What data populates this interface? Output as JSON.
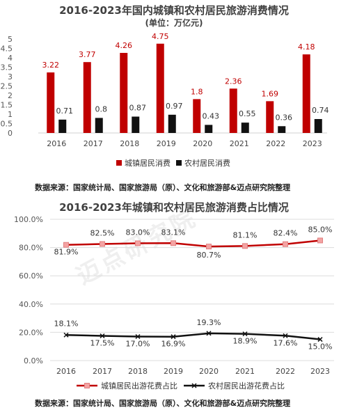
{
  "chart1": {
    "title": "2016-2023年国内城镇和农村居民旅游消费情况",
    "unit": "(单位：万亿元)",
    "source": "数据来源：国家统计局、国家旅游局（原）、文化和旅游部&迈点研究院整理",
    "legend": [
      "城镇居民消费",
      "农村居民消费"
    ],
    "colors": {
      "urban": "#c00000",
      "rural": "#111111"
    }
  },
  "chart2": {
    "title": "2016-2023年城镇和农村居民旅游消费占比情况",
    "source": "数据来源：国家统计局、国家旅游局（原）、文化和旅游部&迈点研究院整理",
    "legend": [
      "城镇居民出游花费占比",
      "农村居民出游花费占比"
    ],
    "colors": {
      "urban": "#c00000",
      "rural": "#111111"
    }
  },
  "watermark": "迈点研究院",
  "chart_data": [
    {
      "type": "bar",
      "title": "2016-2023年国内城镇和农村居民旅游消费情况",
      "categories": [
        "2016",
        "2017",
        "2018",
        "2019",
        "2020",
        "2021",
        "2022",
        "2023"
      ],
      "series": [
        {
          "name": "城镇居民消费",
          "values": [
            3.22,
            3.77,
            4.26,
            4.75,
            1.8,
            2.36,
            1.69,
            4.18
          ]
        },
        {
          "name": "农村居民消费",
          "values": [
            0.71,
            0.8,
            0.87,
            0.97,
            0.43,
            0.55,
            0.36,
            0.74
          ]
        }
      ],
      "ylim": [
        0,
        5
      ],
      "yticks": [
        "0",
        "0.5",
        "1",
        "1.5",
        "2",
        "2.5",
        "3",
        "3.5",
        "4",
        "4.5",
        "5"
      ],
      "legend_position": "bottom"
    },
    {
      "type": "line",
      "title": "2016-2023年城镇和农村居民旅游消费占比情况",
      "categories": [
        "2016",
        "2017",
        "2018",
        "2019",
        "2020",
        "2021",
        "2022",
        "2023"
      ],
      "series": [
        {
          "name": "城镇居民出游花费占比",
          "values": [
            81.9,
            82.5,
            83.0,
            83.1,
            80.7,
            81.1,
            82.4,
            85.0
          ],
          "labels": [
            "81.9%",
            "82.5%",
            "83.0%",
            "83.1%",
            "80.7%",
            "81.1%",
            "82.4%",
            "85.0%"
          ]
        },
        {
          "name": "农村居民出游花费占比",
          "values": [
            18.1,
            17.5,
            17.0,
            16.9,
            19.3,
            18.9,
            17.6,
            15.0
          ],
          "labels": [
            "18.1%",
            "17.5%",
            "17.0%",
            "16.9%",
            "19.3%",
            "18.9%",
            "17.6%",
            "15.0%"
          ]
        }
      ],
      "ylim": [
        0,
        100
      ],
      "yticks": [
        "0.0%",
        "20.0%",
        "40.0%",
        "60.0%",
        "80.0%",
        "100.0%"
      ],
      "grid": true,
      "legend_position": "bottom"
    }
  ]
}
